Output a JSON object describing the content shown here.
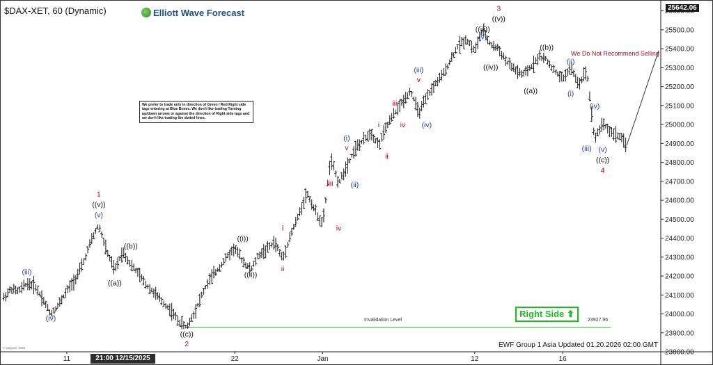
{
  "header": {
    "title": "$DAX-XET, 60 (Dynamic)",
    "brand": "Elliott Wave Forecast"
  },
  "note": "We prefer to trade only in direction of Green / Red Right side tags entering at Blue Boxes. We don't like trading Turning up/down arrows or against the direction of Right side tags and we don't like trading the dotted lines.",
  "recommendation": "We Do Not Recommend Selling",
  "right_side": {
    "label": "Right Side",
    "icon": "up-arrow-icon",
    "color": "#19c019"
  },
  "invalidation": {
    "label": "Invalidation Level",
    "value": "23927.96",
    "level": 23927.96,
    "color": "#19c019"
  },
  "footer": "EWF Group 1 Asia Updated 01.20.2026 02:00 GMT",
  "copyright": "© eSignal, 2026",
  "last_price": "25642.06",
  "crosshair_date": "21:00 12/15/2025",
  "colors": {
    "red": "#d0021b",
    "blue": "#1f3ba8",
    "black": "#111111",
    "green": "#19c019"
  },
  "chart_data": {
    "type": "ohlc",
    "title": "$DAX-XET, 60 (Dynamic)",
    "ylim": [
      23800,
      25650
    ],
    "yticks": [
      23800,
      23900,
      24000,
      24100,
      24200,
      24300,
      24400,
      24500,
      24600,
      24700,
      24800,
      24900,
      25000,
      25100,
      25200,
      25300,
      25400,
      25500,
      25600
    ],
    "y_tick_labels": [
      "23800.00",
      "23900.00",
      "24000.00",
      "24100.00",
      "24200.00",
      "24300.00",
      "24400.00",
      "24500.00",
      "24600.00",
      "24700.00",
      "24800.00",
      "24900.00",
      "25000.00",
      "25100.00",
      "25200.00",
      "25300.00",
      "25400.00",
      "25500.00",
      "25600.00"
    ],
    "x_range": [
      0,
      82
    ],
    "x_ticks": [
      {
        "label": "11",
        "x": 8
      },
      {
        "label": "22",
        "x": 29
      },
      {
        "label": "Jan",
        "x": 40
      },
      {
        "label": "12",
        "x": 59
      },
      {
        "label": "16",
        "x": 70
      }
    ],
    "grid": false,
    "price_path": [
      [
        0,
        24080
      ],
      [
        1,
        24130
      ],
      [
        2,
        24120
      ],
      [
        3,
        24160
      ],
      [
        4,
        24150
      ],
      [
        5,
        24080
      ],
      [
        6,
        24000
      ],
      [
        7,
        24050
      ],
      [
        8,
        24120
      ],
      [
        9,
        24180
      ],
      [
        10,
        24260
      ],
      [
        11,
        24380
      ],
      [
        12,
        24470
      ],
      [
        13,
        24330
      ],
      [
        14,
        24230
      ],
      [
        15,
        24330
      ],
      [
        16,
        24260
      ],
      [
        17,
        24210
      ],
      [
        18,
        24150
      ],
      [
        19,
        24110
      ],
      [
        20,
        24060
      ],
      [
        21,
        24020
      ],
      [
        22,
        23960
      ],
      [
        23,
        23927.96
      ],
      [
        24,
        24010
      ],
      [
        25,
        24110
      ],
      [
        26,
        24190
      ],
      [
        27,
        24240
      ],
      [
        28,
        24300
      ],
      [
        29,
        24350
      ],
      [
        30,
        24280
      ],
      [
        31,
        24230
      ],
      [
        32,
        24310
      ],
      [
        33,
        24340
      ],
      [
        34,
        24380
      ],
      [
        35,
        24290
      ],
      [
        36,
        24420
      ],
      [
        37,
        24520
      ],
      [
        38,
        24640
      ],
      [
        39,
        24550
      ],
      [
        40,
        24470
      ],
      [
        41,
        24820
      ],
      [
        42,
        24690
      ],
      [
        43,
        24780
      ],
      [
        44,
        24870
      ],
      [
        45,
        24910
      ],
      [
        46,
        24960
      ],
      [
        47,
        24890
      ],
      [
        48,
        24990
      ],
      [
        49,
        25060
      ],
      [
        50,
        25120
      ],
      [
        51,
        25180
      ],
      [
        52,
        25060
      ],
      [
        53,
        25140
      ],
      [
        54,
        25210
      ],
      [
        55,
        25260
      ],
      [
        56,
        25340
      ],
      [
        57,
        25420
      ],
      [
        58,
        25450
      ],
      [
        59,
        25390
      ],
      [
        60,
        25500
      ],
      [
        61,
        25420
      ],
      [
        62,
        25400
      ],
      [
        63,
        25330
      ],
      [
        64,
        25290
      ],
      [
        65,
        25260
      ],
      [
        66,
        25300
      ],
      [
        67,
        25360
      ],
      [
        68,
        25340
      ],
      [
        69,
        25280
      ],
      [
        70,
        25240
      ],
      [
        71,
        25300
      ],
      [
        72,
        25210
      ],
      [
        73,
        25290
      ],
      [
        74,
        24920
      ],
      [
        75,
        25010
      ],
      [
        76,
        24960
      ],
      [
        77,
        24940
      ],
      [
        78,
        24890
      ]
    ],
    "projection": [
      [
        78,
        24890
      ],
      [
        82,
        25390
      ]
    ],
    "wave_labels": [
      {
        "text": "1",
        "x": 12,
        "y": 24620,
        "color": "red"
      },
      {
        "text": "((v))",
        "x": 12,
        "y": 24565,
        "color": "black"
      },
      {
        "text": "(v)",
        "x": 12,
        "y": 24510,
        "color": "blue"
      },
      {
        "text": "(iii)",
        "x": 3,
        "y": 24210,
        "color": "blue"
      },
      {
        "text": "(iv)",
        "x": 6,
        "y": 23965,
        "color": "blue"
      },
      {
        "text": "((a))",
        "x": 14,
        "y": 24150,
        "color": "black"
      },
      {
        "text": "((b))",
        "x": 16,
        "y": 24345,
        "color": "black"
      },
      {
        "text": "((c))",
        "x": 23,
        "y": 23880,
        "color": "black"
      },
      {
        "text": "2",
        "x": 23,
        "y": 23830,
        "color": "red"
      },
      {
        "text": "((i))",
        "x": 30,
        "y": 24385,
        "color": "black"
      },
      {
        "text": "((ii))",
        "x": 31,
        "y": 24195,
        "color": "black"
      },
      {
        "text": "i",
        "x": 35,
        "y": 24440,
        "color": "red"
      },
      {
        "text": "ii",
        "x": 35,
        "y": 24225,
        "color": "red"
      },
      {
        "text": "iii",
        "x": 41,
        "y": 24675,
        "color": "red"
      },
      {
        "text": "iv",
        "x": 42,
        "y": 24440,
        "color": "red"
      },
      {
        "text": "(i)",
        "x": 43,
        "y": 24915,
        "color": "blue"
      },
      {
        "text": "v",
        "x": 43,
        "y": 24865,
        "color": "red"
      },
      {
        "text": "(ii)",
        "x": 44,
        "y": 24670,
        "color": "blue"
      },
      {
        "text": "i",
        "x": 47,
        "y": 24985,
        "color": "red"
      },
      {
        "text": "ii",
        "x": 48,
        "y": 24820,
        "color": "red"
      },
      {
        "text": "iii",
        "x": 49,
        "y": 25100,
        "color": "red"
      },
      {
        "text": "iv",
        "x": 50,
        "y": 24985,
        "color": "red"
      },
      {
        "text": "(iii)",
        "x": 52,
        "y": 25275,
        "color": "blue"
      },
      {
        "text": "v",
        "x": 52,
        "y": 25225,
        "color": "red"
      },
      {
        "text": "(iv)",
        "x": 53,
        "y": 24985,
        "color": "blue"
      },
      {
        "text": "(v)",
        "x": 60,
        "y": 25450,
        "color": "blue"
      },
      {
        "text": "((iii))",
        "x": 60,
        "y": 25490,
        "color": "black"
      },
      {
        "text": "3",
        "x": 62,
        "y": 25600,
        "color": "red"
      },
      {
        "text": "((v))",
        "x": 62,
        "y": 25545,
        "color": "black"
      },
      {
        "text": "((iv))",
        "x": 61,
        "y": 25290,
        "color": "black"
      },
      {
        "text": "((b))",
        "x": 68,
        "y": 25395,
        "color": "black"
      },
      {
        "text": "((a))",
        "x": 66,
        "y": 25165,
        "color": "black"
      },
      {
        "text": "(ii)",
        "x": 71,
        "y": 25320,
        "color": "blue"
      },
      {
        "text": "(i)",
        "x": 71,
        "y": 25150,
        "color": "blue"
      },
      {
        "text": "(iv)",
        "x": 74,
        "y": 25085,
        "color": "blue"
      },
      {
        "text": "(iii)",
        "x": 73,
        "y": 24860,
        "color": "blue"
      },
      {
        "text": "(v)",
        "x": 75,
        "y": 24855,
        "color": "blue"
      },
      {
        "text": "((c))",
        "x": 75,
        "y": 24800,
        "color": "black"
      },
      {
        "text": "4",
        "x": 75,
        "y": 24745,
        "color": "red"
      }
    ]
  }
}
